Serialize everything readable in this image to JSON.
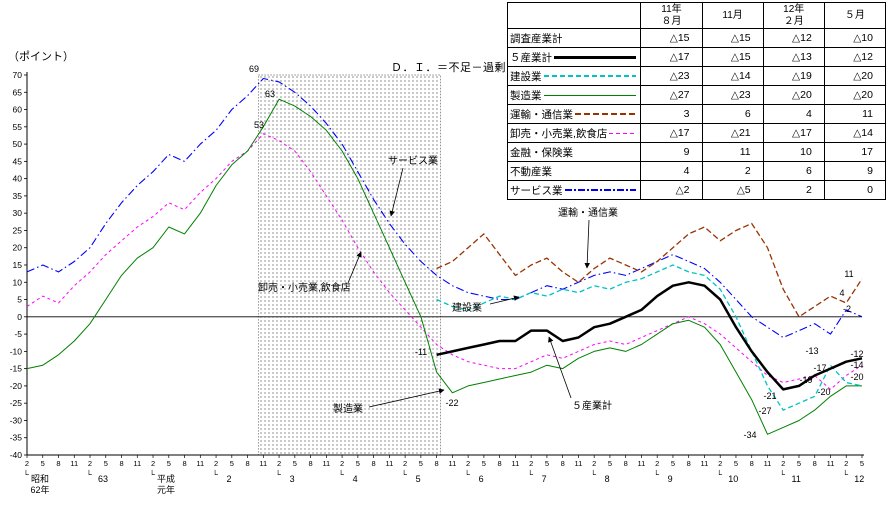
{
  "labels": {
    "unit": "（ポイント）",
    "di_definition": "Ｄ．Ｉ．＝不足－過剰"
  },
  "table": {
    "col_headers": [
      [
        "11年",
        "８月"
      ],
      [
        "",
        "11月"
      ],
      [
        "12年",
        "２月"
      ],
      [
        "",
        "５月"
      ]
    ],
    "rows": [
      {
        "key": "all-industries",
        "label": "調査産業計",
        "line_style": "none",
        "values": [
          "△15",
          "△15",
          "△12",
          "△10"
        ]
      },
      {
        "key": "five-total",
        "label": "５産業計",
        "line_style": "total",
        "values": [
          "△17",
          "△15",
          "△13",
          "△12"
        ]
      },
      {
        "key": "construction",
        "label": "建設業",
        "line_style": "construction",
        "values": [
          "△23",
          "△14",
          "△19",
          "△20"
        ]
      },
      {
        "key": "manufacturing",
        "label": "製造業",
        "line_style": "manufacturing",
        "values": [
          "△27",
          "△23",
          "△20",
          "△20"
        ]
      },
      {
        "key": "transport",
        "label": "運輸・通信業",
        "line_style": "transport",
        "values": [
          "3",
          "6",
          "4",
          "11"
        ]
      },
      {
        "key": "wholesale",
        "label": "卸売・小売業,飲食店",
        "line_style": "wholesale",
        "values": [
          "△17",
          "△21",
          "△17",
          "△14"
        ]
      },
      {
        "key": "finance",
        "label": "金融・保険業",
        "line_style": "none",
        "values": [
          "9",
          "11",
          "10",
          "17"
        ]
      },
      {
        "key": "realestate",
        "label": "不動産業",
        "line_style": "none",
        "values": [
          "4",
          "2",
          "6",
          "9"
        ]
      },
      {
        "key": "services",
        "label": "サービス業",
        "line_style": "services",
        "values": [
          "△2",
          "△5",
          "2",
          "0"
        ]
      }
    ]
  },
  "chart_data": {
    "type": "line",
    "title": "",
    "xlabel": "",
    "ylabel": "（ポイント）",
    "ylim": [
      -40,
      70
    ],
    "ytick_step": 5,
    "zero_line": true,
    "grid": false,
    "legend_position": "table-top-right",
    "x_tick_labels": [
      "2",
      "5",
      "8",
      "11",
      "2",
      "5",
      "8",
      "11",
      "2",
      "5",
      "8",
      "11",
      "2",
      "5",
      "8",
      "11",
      "2",
      "5",
      "8",
      "11",
      "2",
      "5",
      "8",
      "11",
      "2",
      "5",
      "8",
      "11",
      "2",
      "5",
      "8",
      "11",
      "2",
      "5",
      "8",
      "11",
      "2",
      "5",
      "8",
      "11",
      "2",
      "5",
      "8",
      "11",
      "2",
      "5",
      "8",
      "11",
      "2",
      "5",
      "8",
      "11",
      "2",
      "5"
    ],
    "era_labels": [
      {
        "index": 0,
        "lines": [
          "昭和",
          "62年"
        ]
      },
      {
        "index": 4,
        "lines": [
          "63"
        ]
      },
      {
        "index": 8,
        "lines": [
          "平成",
          "元年"
        ]
      },
      {
        "index": 12,
        "lines": [
          "2"
        ]
      },
      {
        "index": 16,
        "lines": [
          "3"
        ]
      },
      {
        "index": 20,
        "lines": [
          "4"
        ]
      },
      {
        "index": 24,
        "lines": [
          "5"
        ]
      },
      {
        "index": 28,
        "lines": [
          "6"
        ]
      },
      {
        "index": 32,
        "lines": [
          "7"
        ]
      },
      {
        "index": 36,
        "lines": [
          "8"
        ]
      },
      {
        "index": 40,
        "lines": [
          "9"
        ]
      },
      {
        "index": 44,
        "lines": [
          "10"
        ]
      },
      {
        "index": 48,
        "lines": [
          "11"
        ]
      },
      {
        "index": 52,
        "lines": [
          "12"
        ]
      }
    ],
    "shaded_region": {
      "from_index": 15,
      "to_index": 26
    },
    "series": [
      {
        "key": "services",
        "name": "サービス業",
        "color": "#0000ff",
        "width": 1.1,
        "dash": "8 3 1.5 3",
        "start_index": 0,
        "values": [
          13,
          15,
          13,
          16,
          20,
          27,
          33,
          38,
          42,
          47,
          45,
          50,
          54,
          60,
          64,
          69,
          68,
          65,
          61,
          56,
          50,
          42,
          34,
          27,
          21,
          16,
          12,
          9,
          7,
          6,
          5,
          5,
          7,
          9,
          8,
          10,
          12,
          13,
          12,
          14,
          16,
          18,
          16,
          14,
          10,
          5,
          0,
          -3,
          -6,
          -4,
          -2,
          -5,
          2,
          0
        ]
      },
      {
        "key": "wholesale",
        "name": "卸売・小売業,飲食店",
        "color": "#ff00ff",
        "width": 1,
        "dash": "3 3",
        "start_index": 0,
        "values": [
          3,
          6,
          4,
          9,
          13,
          18,
          22,
          26,
          29,
          33,
          31,
          36,
          40,
          45,
          48,
          53,
          51,
          48,
          42,
          35,
          28,
          20,
          13,
          7,
          2,
          -3,
          -8,
          -11,
          -13,
          -14,
          -15,
          -15,
          -13,
          -11,
          -12,
          -10,
          -8,
          -7,
          -8,
          -6,
          -4,
          -2,
          0,
          -2,
          -5,
          -9,
          -13,
          -17,
          -19,
          -18,
          -17,
          -21,
          -17,
          -14
        ]
      },
      {
        "key": "manufacturing",
        "name": "製造業",
        "color": "#008000",
        "width": 1,
        "dash": "",
        "start_index": 0,
        "values": [
          -15,
          -14,
          -11,
          -7,
          -2,
          5,
          12,
          17,
          20,
          26,
          24,
          30,
          38,
          44,
          48,
          55,
          63,
          61,
          58,
          54,
          48,
          40,
          30,
          20,
          10,
          0,
          -16,
          -22,
          -20,
          -19,
          -18,
          -17,
          -16,
          -14,
          -15,
          -12,
          -10,
          -9,
          -10,
          -8,
          -5,
          -2,
          -1,
          -3,
          -8,
          -16,
          -24,
          -34,
          -32,
          -30,
          -27,
          -23,
          -20,
          -20
        ]
      },
      {
        "key": "construction",
        "name": "建設業",
        "color": "#00c3c3",
        "width": 1.3,
        "dash": "5 3",
        "start_index": 26,
        "values": [
          5,
          3,
          2,
          4,
          6,
          5,
          7,
          6,
          8,
          7,
          9,
          8,
          10,
          11,
          13,
          15,
          13,
          12,
          8,
          0,
          -10,
          -20,
          -27,
          -25,
          -23,
          -14,
          -19,
          -20
        ]
      },
      {
        "key": "transport",
        "name": "運輸・通信業",
        "color": "#993300",
        "width": 1.3,
        "dash": "6 3",
        "start_index": 26,
        "values": [
          14,
          16,
          20,
          24,
          18,
          12,
          15,
          17,
          13,
          10,
          14,
          17,
          15,
          13,
          16,
          20,
          24,
          26,
          22,
          25,
          27,
          20,
          8,
          0,
          3,
          6,
          4,
          11
        ]
      },
      {
        "key": "five-total",
        "name": "５産業計",
        "color": "#000000",
        "width": 2.5,
        "dash": "",
        "start_index": 26,
        "values": [
          -11,
          -10,
          -9,
          -8,
          -7,
          -7,
          -4,
          -4,
          -7,
          -6,
          -3,
          -2,
          0,
          2,
          6,
          9,
          10,
          9,
          5,
          -3,
          -10,
          -16,
          -21,
          -20,
          -17,
          -15,
          -13,
          -12
        ]
      }
    ],
    "point_labels": [
      {
        "text": "69",
        "x": 254,
        "y": 72
      },
      {
        "text": "63",
        "x": 270,
        "y": 97
      },
      {
        "text": "53",
        "x": 259,
        "y": 128
      },
      {
        "text": "-11",
        "x": 421,
        "y": 355
      },
      {
        "text": "-22",
        "x": 452,
        "y": 406
      },
      {
        "text": "11",
        "x": 849,
        "y": 277
      },
      {
        "text": "4",
        "x": 842,
        "y": 296
      },
      {
        "text": "-2",
        "x": 847,
        "y": 312
      },
      {
        "text": "-13",
        "x": 812,
        "y": 354
      },
      {
        "text": "-12",
        "x": 857,
        "y": 357
      },
      {
        "text": "-17",
        "x": 820,
        "y": 371
      },
      {
        "text": "-14",
        "x": 857,
        "y": 368
      },
      {
        "text": "-19",
        "x": 806,
        "y": 383
      },
      {
        "text": "-20",
        "x": 857,
        "y": 380
      },
      {
        "text": "-20",
        "x": 824,
        "y": 395
      },
      {
        "text": "-21",
        "x": 770,
        "y": 399
      },
      {
        "text": "-27",
        "x": 765,
        "y": 414
      },
      {
        "text": "-34",
        "x": 750,
        "y": 438
      }
    ],
    "annotations": [
      {
        "text": "サービス業",
        "tx": 388,
        "ty": 164,
        "x1": 403,
        "y1": 168,
        "x2": 391,
        "y2": 216
      },
      {
        "text": "卸売・小売業,飲食店",
        "tx": 258,
        "ty": 291,
        "x1": 348,
        "y1": 283,
        "x2": 361,
        "y2": 252
      },
      {
        "text": "建設業",
        "tx": 452,
        "ty": 311,
        "x1": 490,
        "y1": 304,
        "x2": 519,
        "y2": 297
      },
      {
        "text": "運輸・通信業",
        "tx": 558,
        "ty": 216,
        "x1": 589,
        "y1": 220,
        "x2": 587,
        "y2": 268
      },
      {
        "text": "製造業",
        "tx": 333,
        "ty": 412,
        "x1": 369,
        "y1": 407,
        "x2": 444,
        "y2": 390
      },
      {
        "text": "５産業計",
        "tx": 572,
        "ty": 409,
        "x1": 571,
        "y1": 398,
        "x2": 549,
        "y2": 337
      }
    ]
  }
}
